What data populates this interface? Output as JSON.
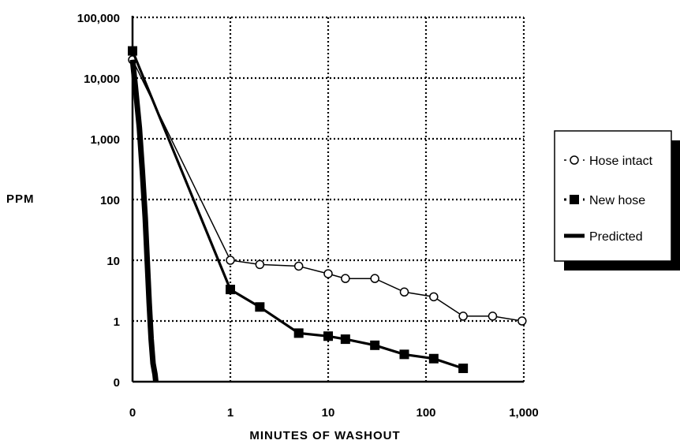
{
  "chart_data": {
    "type": "line",
    "title": "",
    "xlabel": "MINUTES OF WASHOUT",
    "ylabel": "PPM",
    "x_scale": "log (0 shown at origin)",
    "y_scale": "log (0 shown at origin)",
    "x_ticks": [
      "0",
      "1",
      "10",
      "100",
      "1,000"
    ],
    "y_ticks": [
      "0",
      "1",
      "10",
      "100",
      "1,000",
      "10,000",
      "100,000"
    ],
    "xlim": [
      0,
      1000
    ],
    "ylim": [
      0,
      100000
    ],
    "grid": true,
    "legend_position": "right",
    "series": [
      {
        "name": "Hose intact",
        "marker": "open-circle",
        "line": "thin",
        "x": [
          0,
          1,
          2,
          5,
          10,
          15,
          30,
          60,
          120,
          240,
          480,
          960
        ],
        "y": [
          20000,
          10,
          8.5,
          8,
          6,
          5,
          5,
          3,
          2.5,
          1.2,
          1.2,
          1
        ]
      },
      {
        "name": "New hose",
        "marker": "filled-square",
        "line": "thick",
        "x": [
          0,
          1,
          2,
          5,
          10,
          15,
          30,
          60,
          120,
          240
        ],
        "y": [
          28000,
          3.3,
          1.7,
          0.8,
          0.75,
          0.7,
          0.6,
          0.45,
          0.38,
          0.22
        ]
      },
      {
        "name": "Predicted",
        "marker": "none",
        "line": "heavy",
        "x": [
          0,
          0.03,
          0.07,
          0.1,
          0.13,
          0.15,
          0.17,
          0.19,
          0.21,
          0.23
        ],
        "y": [
          20000,
          7000,
          1500,
          300,
          50,
          10,
          2,
          0.7,
          0.3,
          0.12
        ]
      }
    ],
    "colors": {
      "ink": "#000000",
      "background": "#ffffff"
    }
  }
}
